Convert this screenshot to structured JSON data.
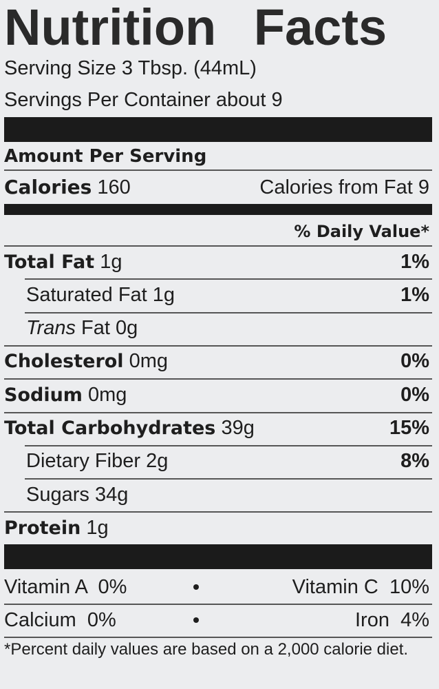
{
  "title": "Nutrition Facts",
  "serving_size": "Serving Size 3 Tbsp. (44mL)",
  "servings_per_container": "Servings Per Container about 9",
  "amount_per_serving": "Amount Per Serving",
  "calories": {
    "label": "Calories",
    "value": "160",
    "from_fat": "Calories from Fat 9"
  },
  "daily_value_header": "% Daily Value*",
  "nutrients": [
    {
      "label": "Total Fat",
      "amount": "1g",
      "dv": "1%",
      "bold": true,
      "indent": false
    },
    {
      "label": "Saturated Fat",
      "amount": "1g",
      "dv": "1%",
      "bold": false,
      "indent": true
    },
    {
      "label": "Trans",
      "label_suffix": "Fat",
      "amount": "0g",
      "dv": "",
      "bold": false,
      "indent": true
    },
    {
      "label": "Cholesterol",
      "amount": "0mg",
      "dv": "0%",
      "bold": true,
      "indent": false
    },
    {
      "label": "Sodium",
      "amount": "0mg",
      "dv": "0%",
      "bold": true,
      "indent": false
    },
    {
      "label": "Total Carbohydrates",
      "amount": "39g",
      "dv": "15%",
      "bold": true,
      "indent": false
    },
    {
      "label": "Dietary Fiber",
      "amount": "2g",
      "dv": "8%",
      "bold": false,
      "indent": true
    },
    {
      "label": "Sugars",
      "amount": "34g",
      "dv": "",
      "bold": false,
      "indent": true
    },
    {
      "label": "Protein",
      "amount": "1g",
      "dv": "",
      "bold": true,
      "indent": false
    }
  ],
  "vitamins": [
    {
      "left": "Vitamin A  0%",
      "right": "Vitamin C  10%"
    },
    {
      "left": "Calcium  0%",
      "right": "Iron  4%"
    }
  ],
  "footnote": "*Percent daily values are based on a 2,000 calorie diet."
}
